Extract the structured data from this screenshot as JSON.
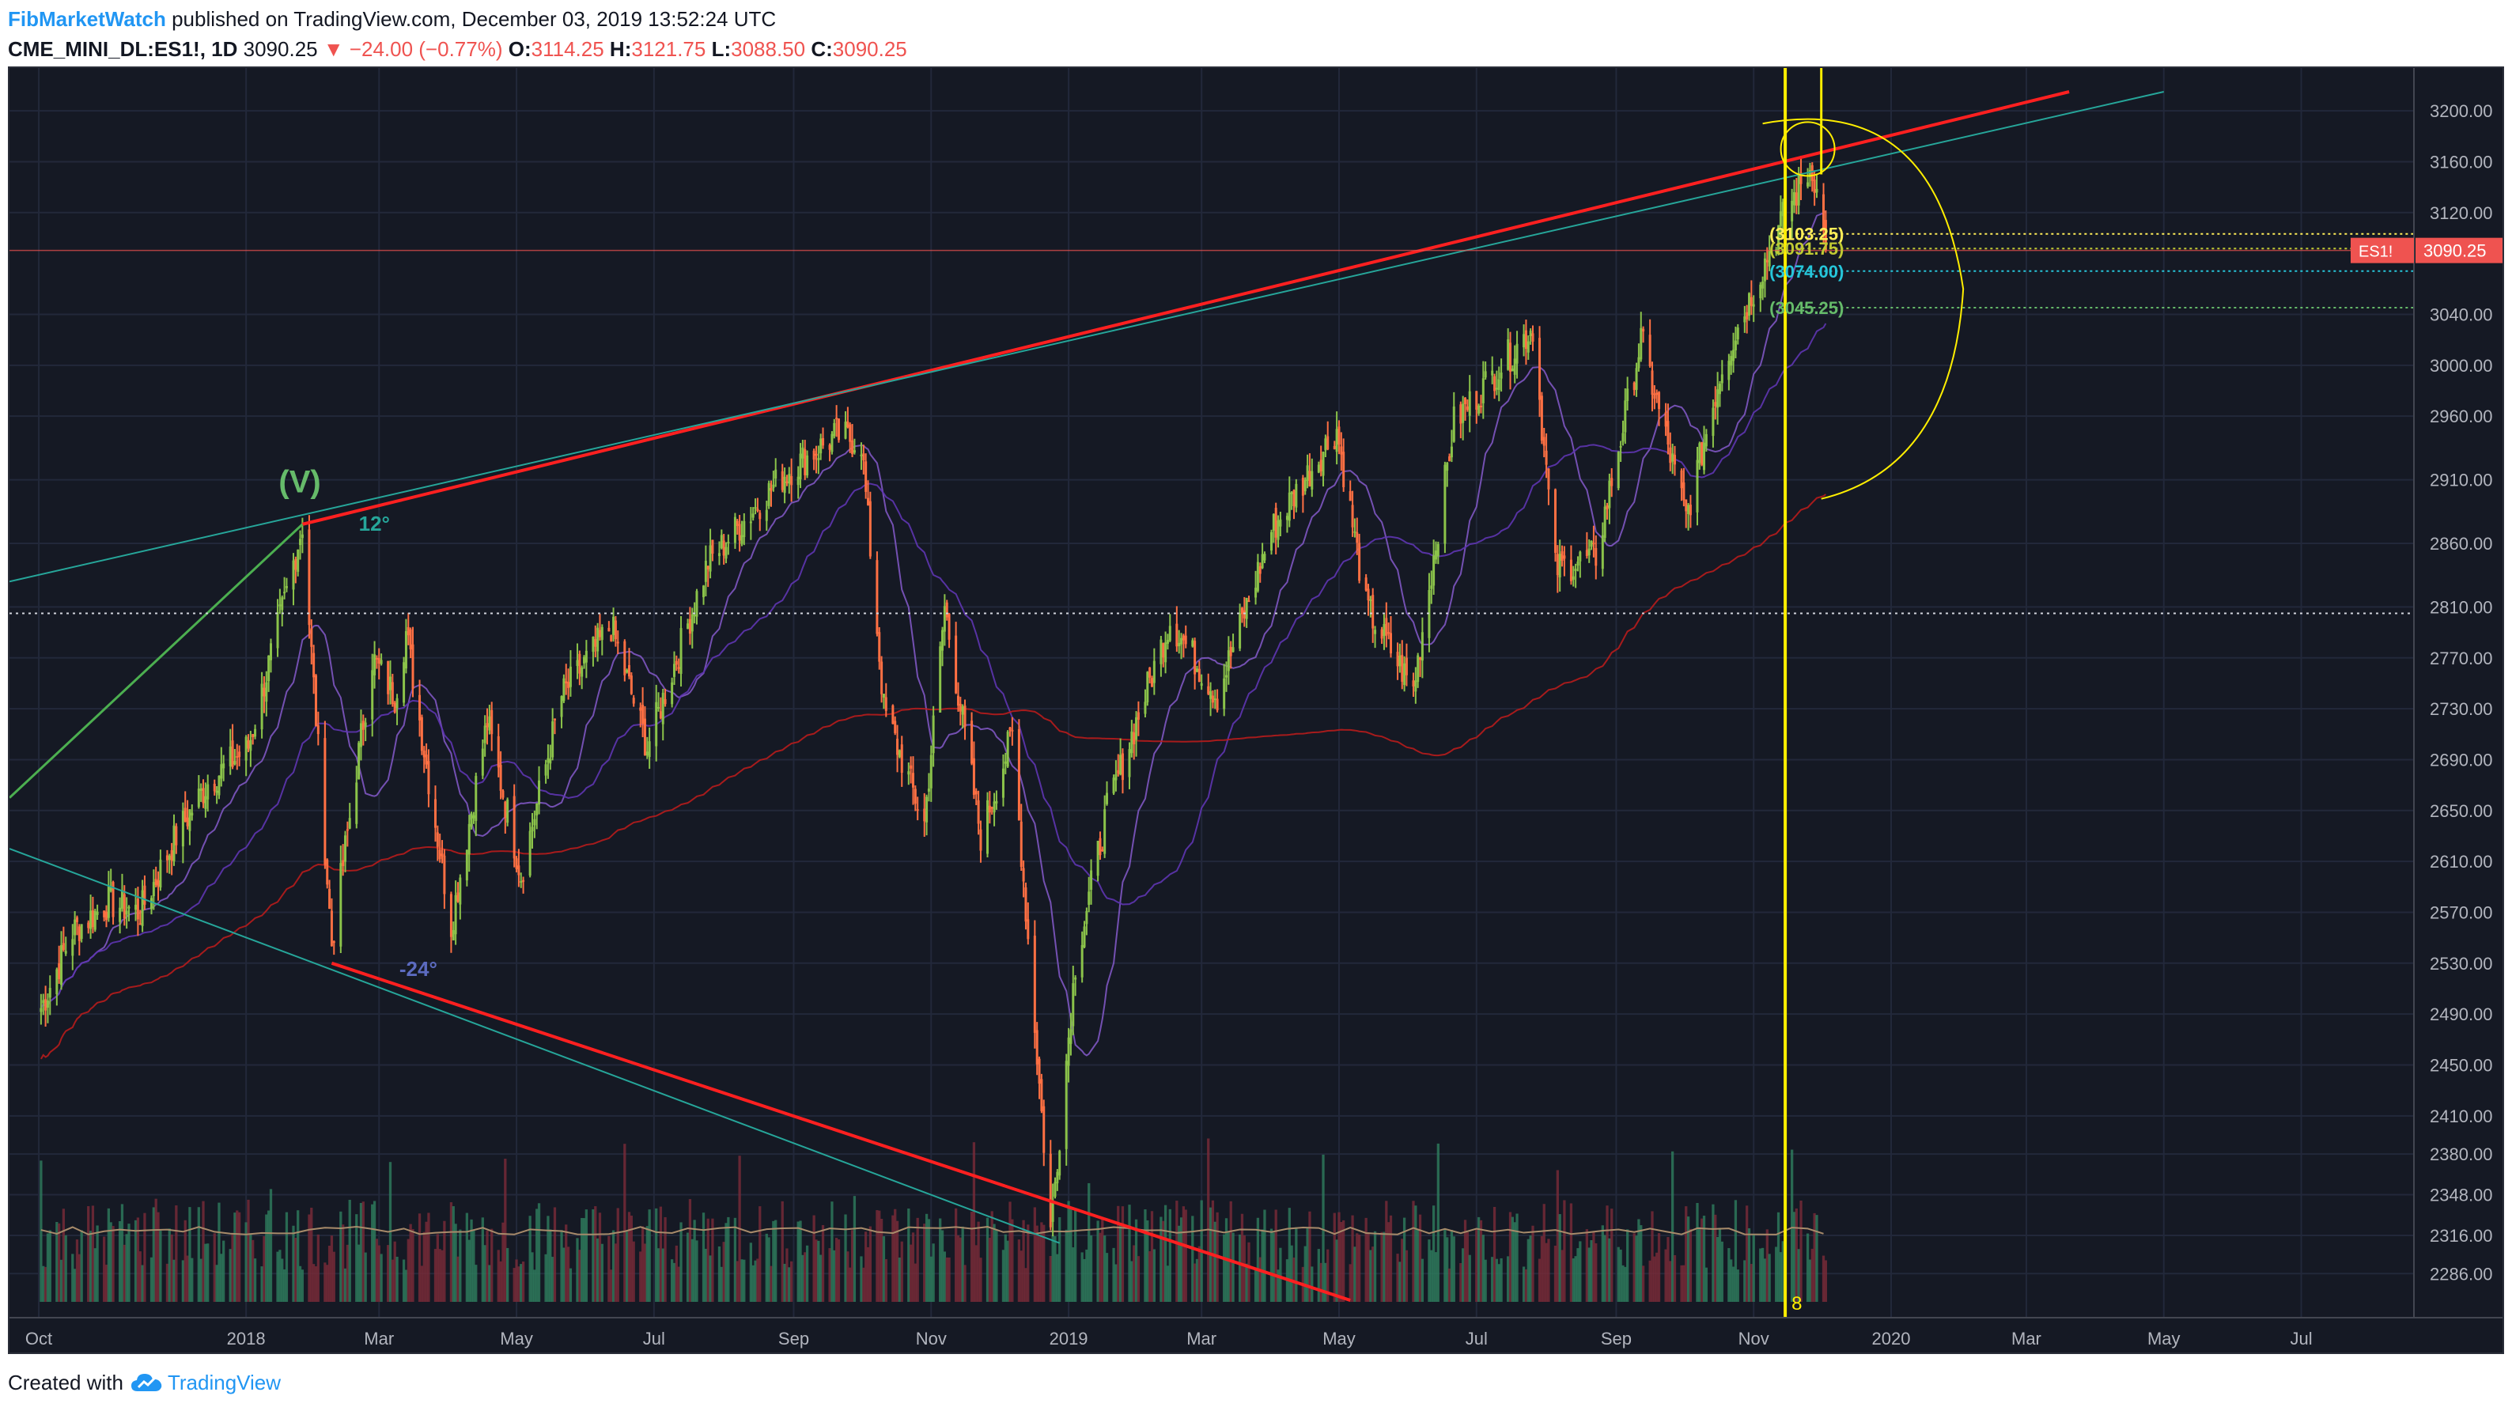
{
  "header": {
    "author": "FibMarketWatch",
    "published_text": "published on TradingView.com, December 03, 2019 13:52:24 UTC",
    "symbol": "CME_MINI_DL:ES1!, 1D",
    "price": "3090.25",
    "change": "▼ −24.00 (−0.77%)",
    "open_label": "O:",
    "open": "3114.25",
    "high_label": "H:",
    "high": "3121.75",
    "low_label": "L:",
    "low": "3088.50",
    "close_label": "C:",
    "close": "3090.25"
  },
  "footer": {
    "created_with": "Created with",
    "brand": "TradingView",
    "logo_icon": "tradingview-cloud-logo"
  },
  "colors": {
    "background": "#151924",
    "grid": "#22283a",
    "up": "#8bc34a",
    "down": "#ff7043",
    "trendline": "#ff2020",
    "cycle_line": "#ffee00",
    "ma_purple": "#7e57c2",
    "ma_red": "#b71c1c",
    "volume_up": "#2e7d5e",
    "volume_down": "#7a2b38",
    "price_tag": "#ef5350"
  },
  "chart_data": {
    "type": "candlestick",
    "symbol": "CME_MINI_DL:ES1!",
    "interval": "1D",
    "xaxis_labels": [
      "Oct",
      "2018",
      "Mar",
      "May",
      "Jul",
      "Sep",
      "Nov",
      "2019",
      "Mar",
      "May",
      "Jul",
      "Sep",
      "Nov",
      "2020",
      "Mar",
      "May",
      "Jul"
    ],
    "yaxis_labels": [
      "3200.00",
      "3160.00",
      "3120.00",
      "3040.00",
      "3000.00",
      "2960.00",
      "2910.00",
      "2860.00",
      "2810.00",
      "2770.00",
      "2730.00",
      "2690.00",
      "2650.00",
      "2610.00",
      "2570.00",
      "2530.00",
      "2490.00",
      "2450.00",
      "2410.00",
      "2380.00",
      "2348.00",
      "2316.00",
      "2286.00"
    ],
    "ylim": [
      2270,
      3215
    ],
    "last_price_tag": {
      "symbol": "ES1!",
      "value": "3090.25"
    },
    "close_series": [
      [
        "2017-10-02",
        2495
      ],
      [
        "2017-10-16",
        2555
      ],
      [
        "2017-11-01",
        2578
      ],
      [
        "2017-11-15",
        2570
      ],
      [
        "2017-12-01",
        2630
      ],
      [
        "2017-12-15",
        2672
      ],
      [
        "2018-01-02",
        2700
      ],
      [
        "2018-01-16",
        2800
      ],
      [
        "2018-01-26",
        2875
      ],
      [
        "2018-02-08",
        2545
      ],
      [
        "2018-02-26",
        2770
      ],
      [
        "2018-03-08",
        2740
      ],
      [
        "2018-03-13",
        2790
      ],
      [
        "2018-04-02",
        2560
      ],
      [
        "2018-04-18",
        2720
      ],
      [
        "2018-05-03",
        2600
      ],
      [
        "2018-05-21",
        2740
      ],
      [
        "2018-06-12",
        2795
      ],
      [
        "2018-06-28",
        2700
      ],
      [
        "2018-07-25",
        2845
      ],
      [
        "2018-08-28",
        2915
      ],
      [
        "2018-09-20",
        2945
      ],
      [
        "2018-10-01",
        2940
      ],
      [
        "2018-10-11",
        2730
      ],
      [
        "2018-10-29",
        2640
      ],
      [
        "2018-11-07",
        2810
      ],
      [
        "2018-11-23",
        2630
      ],
      [
        "2018-12-07",
        2710
      ],
      [
        "2018-12-24",
        2320
      ],
      [
        "2019-01-04",
        2530
      ],
      [
        "2019-01-18",
        2650
      ],
      [
        "2019-02-15",
        2800
      ],
      [
        "2019-03-08",
        2740
      ],
      [
        "2019-04-01",
        2870
      ],
      [
        "2019-04-30",
        2950
      ],
      [
        "2019-05-13",
        2810
      ],
      [
        "2019-06-03",
        2745
      ],
      [
        "2019-06-21",
        2955
      ],
      [
        "2019-07-26",
        3030
      ],
      [
        "2019-08-05",
        2840
      ],
      [
        "2019-08-23",
        2850
      ],
      [
        "2019-09-12",
        3020
      ],
      [
        "2019-10-02",
        2880
      ],
      [
        "2019-10-18",
        3000
      ],
      [
        "2019-11-15",
        3120
      ],
      [
        "2019-11-27",
        3157
      ],
      [
        "2019-12-03",
        3090.25
      ]
    ],
    "moving_averages": [
      "short (purple)",
      "long (red)"
    ],
    "annotations": {
      "wave_label": "(V)",
      "angle_upper": "12°",
      "angle_lower": "-24°",
      "fib_levels": [
        "(3103.25)",
        "(3091.75)",
        "(3074.00)",
        "(3045.25)"
      ],
      "cycle_count": "8"
    },
    "horizontal_levels": [
      2805
    ],
    "grid": true,
    "legend": "none"
  }
}
